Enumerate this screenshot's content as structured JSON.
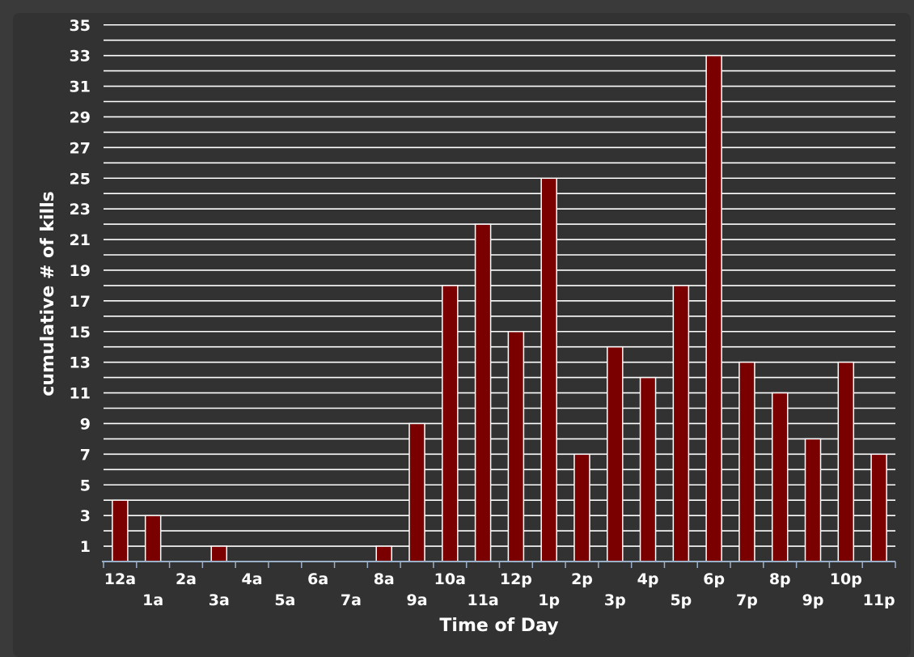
{
  "chart_data": {
    "type": "bar",
    "title": "",
    "xlabel": "Time of Day",
    "ylabel": "cumulative # of kills",
    "categories": [
      "12a",
      "1a",
      "2a",
      "3a",
      "4a",
      "5a",
      "6a",
      "7a",
      "8a",
      "9a",
      "10a",
      "11a",
      "12p",
      "1p",
      "2p",
      "3p",
      "4p",
      "5p",
      "6p",
      "7p",
      "8p",
      "9p",
      "10p",
      "11p"
    ],
    "values": [
      4,
      3,
      0,
      1,
      0,
      0,
      0,
      0,
      1,
      9,
      18,
      22,
      15,
      25,
      7,
      14,
      12,
      18,
      33,
      13,
      11,
      8,
      13,
      7
    ],
    "ylim": [
      0,
      35
    ],
    "y_tick_labels": [
      "1",
      "3",
      "5",
      "7",
      "9",
      "11",
      "13",
      "15",
      "17",
      "19",
      "21",
      "23",
      "25",
      "27",
      "29",
      "31",
      "33",
      "35"
    ],
    "grid": true,
    "colors": {
      "bar_fill": "#7a0000",
      "bar_stroke": "#ffffff",
      "background": "#323232",
      "grid": "#ffffff",
      "text": "#ffffff"
    }
  }
}
